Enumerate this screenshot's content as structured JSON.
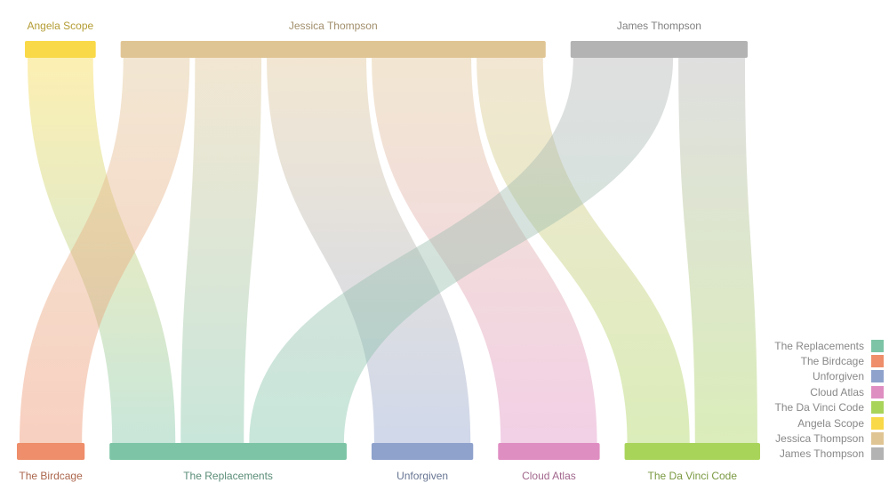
{
  "chart_data": {
    "type": "sankey",
    "sources": [
      {
        "name": "Angela Scope",
        "color": "#f9d948"
      },
      {
        "name": "Jessica Thompson",
        "color": "#e0c594"
      },
      {
        "name": "James Thompson",
        "color": "#b3b3b3"
      }
    ],
    "targets": [
      {
        "name": "The Birdcage",
        "color": "#ee8e6a"
      },
      {
        "name": "The Replacements",
        "color": "#7dc4a6"
      },
      {
        "name": "Unforgiven",
        "color": "#8fa2cc"
      },
      {
        "name": "Cloud Atlas",
        "color": "#df8ec2"
      },
      {
        "name": "The Da Vinci Code",
        "color": "#a9d45a"
      }
    ],
    "links": [
      {
        "source": "Angela Scope",
        "target": "The Replacements",
        "value": 1
      },
      {
        "source": "Jessica Thompson",
        "target": "The Birdcage",
        "value": 1
      },
      {
        "source": "Jessica Thompson",
        "target": "The Replacements",
        "value": 1
      },
      {
        "source": "Jessica Thompson",
        "target": "Unforgiven",
        "value": 1.5
      },
      {
        "source": "Jessica Thompson",
        "target": "Cloud Atlas",
        "value": 1.5
      },
      {
        "source": "Jessica Thompson",
        "target": "The Da Vinci Code",
        "value": 1
      },
      {
        "source": "James Thompson",
        "target": "The Replacements",
        "value": 1.5
      },
      {
        "source": "James Thompson",
        "target": "The Da Vinci Code",
        "value": 1
      }
    ]
  },
  "legend": [
    {
      "label": "The Replacements",
      "color": "#7dc4a6"
    },
    {
      "label": "The Birdcage",
      "color": "#ee8e6a"
    },
    {
      "label": "Unforgiven",
      "color": "#8fa2cc"
    },
    {
      "label": "Cloud Atlas",
      "color": "#df8ec2"
    },
    {
      "label": "The Da Vinci Code",
      "color": "#a9d45a"
    },
    {
      "label": "Angela Scope",
      "color": "#f9d948"
    },
    {
      "label": "Jessica Thompson",
      "color": "#e0c594"
    },
    {
      "label": "James Thompson",
      "color": "#b3b3b3"
    }
  ]
}
